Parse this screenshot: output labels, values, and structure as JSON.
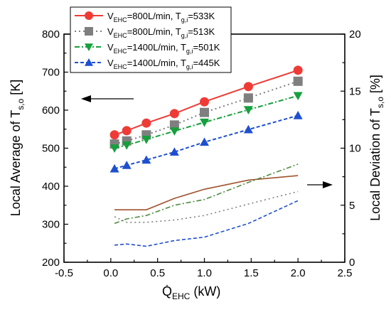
{
  "chart_data": {
    "type": "line",
    "x_ticks": [
      "-0.5",
      "0.0",
      "0.5",
      "1.0",
      "1.5",
      "2.0",
      "2.5"
    ],
    "y_left_ticks": [
      "200",
      "300",
      "400",
      "500",
      "600",
      "700",
      "800"
    ],
    "y_right_ticks": [
      "0",
      "5",
      "10",
      "15",
      "20"
    ],
    "xlim": [
      -0.5,
      2.5
    ],
    "ylim_left": [
      200,
      800
    ],
    "ylim_right": [
      0,
      20
    ],
    "xlabel": {
      "main": "Q̇",
      "sub": "EHC",
      "unit": " (kW)"
    },
    "ylabel_left": {
      "main": "Local Average of T",
      "sub": "s,o",
      "unit": " [K]"
    },
    "ylabel_right": {
      "main": "Local Deviation of T",
      "sub": "s,o",
      "unit": " [%]"
    },
    "legend": [
      {
        "v_sub": "EHC",
        "flow": "=800L/min, T",
        "t_sub": "g,i",
        "temp": "=533K",
        "color": "#ef3b36",
        "dash": "",
        "marker": "circle"
      },
      {
        "v_sub": "EHC",
        "flow": "=800L/min, T",
        "t_sub": "g,i",
        "temp": "=513K",
        "color": "#7f7f7f",
        "dash": "2 4",
        "marker": "square"
      },
      {
        "v_sub": "EHC",
        "flow": "=1400L/min, T",
        "t_sub": "g,i",
        "temp": "=501K",
        "color": "#15a03c",
        "dash": "7 3 2 3",
        "marker": "triangle-down"
      },
      {
        "v_sub": "EHC",
        "flow": "=1400L/min, T",
        "t_sub": "g,i",
        "temp": "=445K",
        "color": "#1f4fd0",
        "dash": "5 3",
        "marker": "triangle-up"
      }
    ],
    "series": [
      {
        "color": "#ef3b36",
        "dash": "",
        "marker": "circle",
        "axis": "left",
        "x": [
          0.04,
          0.17,
          0.38,
          0.68,
          1.0,
          1.47,
          2.0
        ],
        "values": [
          535,
          546,
          566,
          591,
          622,
          662,
          705
        ]
      },
      {
        "color": "#7f7f7f",
        "dash": "2 4",
        "marker": "square",
        "axis": "left",
        "x": [
          0.04,
          0.17,
          0.38,
          0.68,
          1.0,
          1.47,
          2.0
        ],
        "values": [
          511,
          519,
          535,
          561,
          594,
          632,
          676
        ]
      },
      {
        "color": "#15a03c",
        "dash": "7 3 2 3",
        "marker": "triangle-down",
        "axis": "left",
        "x": [
          0.04,
          0.17,
          0.38,
          0.68,
          1.0,
          1.47,
          2.0
        ],
        "values": [
          500,
          508,
          523,
          545,
          568,
          601,
          638
        ]
      },
      {
        "color": "#1f4fd0",
        "dash": "5 3",
        "marker": "triangle-up",
        "axis": "left",
        "x": [
          0.04,
          0.17,
          0.38,
          0.68,
          1.0,
          1.47,
          2.0
        ],
        "values": [
          446,
          455,
          469,
          490,
          516,
          549,
          586
        ]
      },
      {
        "color": "#a0522d",
        "dash": "",
        "marker": "none",
        "axis": "right",
        "x": [
          0.04,
          0.17,
          0.38,
          0.68,
          1.0,
          1.47,
          2.0
        ],
        "values": [
          4.6,
          4.6,
          4.6,
          5.6,
          6.4,
          7.2,
          7.6
        ]
      },
      {
        "color": "#7f7f7f",
        "dash": "2 4",
        "marker": "none",
        "axis": "right",
        "x": [
          0.04,
          0.17,
          0.38,
          0.68,
          1.0,
          1.47,
          2.0
        ],
        "values": [
          4.0,
          3.5,
          3.5,
          3.7,
          4.1,
          5.1,
          6.2
        ]
      },
      {
        "color": "#4f8a3f",
        "dash": "7 3 2 3",
        "marker": "none",
        "axis": "right",
        "x": [
          0.04,
          0.17,
          0.38,
          0.68,
          1.0,
          1.47,
          2.0
        ],
        "values": [
          3.4,
          3.8,
          4.1,
          5.0,
          5.5,
          7.0,
          8.6
        ]
      },
      {
        "color": "#1f4fd0",
        "dash": "5 3",
        "marker": "none",
        "axis": "right",
        "x": [
          0.04,
          0.17,
          0.38,
          0.68,
          1.0,
          1.47,
          2.0
        ],
        "values": [
          1.5,
          1.6,
          1.4,
          1.9,
          2.2,
          3.4,
          5.4
        ]
      }
    ],
    "annotations": [
      {
        "type": "arrow",
        "direction": "left",
        "meaning": "left axis"
      },
      {
        "type": "arrow",
        "direction": "right",
        "meaning": "right axis"
      }
    ],
    "grid": false,
    "legend_position": "top-left"
  }
}
